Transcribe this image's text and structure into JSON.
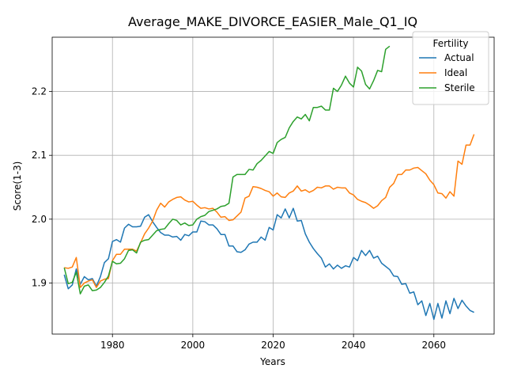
{
  "chart_data": {
    "type": "line",
    "title": "Average_MAKE_DIVORCE_EASIER_Male_Q1_IQ",
    "xlabel": "Years",
    "ylabel": "Score(1-3)",
    "xlim": [
      1965,
      2075
    ],
    "ylim": [
      1.82,
      2.285
    ],
    "xticks": [
      1980,
      2000,
      2020,
      2040,
      2060
    ],
    "yticks": [
      1.9,
      2.0,
      2.1,
      2.2
    ],
    "grid": true,
    "legend": {
      "title": "Fertility",
      "placement": "top-right"
    },
    "series": [
      {
        "name": "Actual",
        "color": "#1f77b4",
        "x": [
          1968,
          1969,
          1970,
          1971,
          1972,
          1973,
          1974,
          1975,
          1976,
          1977,
          1978,
          1979,
          1980,
          1981,
          1982,
          1983,
          1984,
          1985,
          1986,
          1987,
          1988,
          1989,
          1990,
          1991,
          1992,
          1993,
          1994,
          1995,
          1996,
          1997,
          1998,
          1999,
          2000,
          2001,
          2002,
          2003,
          2004,
          2005,
          2006,
          2007,
          2008,
          2009,
          2010,
          2011,
          2012,
          2013,
          2014,
          2015,
          2016,
          2017,
          2018,
          2019,
          2020,
          2021,
          2022,
          2023,
          2024,
          2025,
          2026,
          2027,
          2028,
          2029,
          2030,
          2031,
          2032,
          2033,
          2034,
          2035,
          2036,
          2037,
          2038,
          2039,
          2040,
          2041,
          2042,
          2043,
          2044,
          2045,
          2046,
          2047,
          2048,
          2049,
          2050,
          2051,
          2052,
          2053,
          2054,
          2055,
          2056,
          2057,
          2058,
          2059,
          2060,
          2061,
          2062,
          2063,
          2064,
          2065,
          2066,
          2067,
          2068,
          2069,
          2070
        ],
        "values": [
          1.913,
          1.891,
          1.897,
          1.922,
          1.898,
          1.91,
          1.905,
          1.907,
          1.895,
          1.91,
          1.932,
          1.938,
          1.965,
          1.968,
          1.964,
          1.986,
          1.992,
          1.988,
          1.988,
          1.989,
          2.003,
          2.007,
          1.996,
          1.987,
          1.979,
          1.975,
          1.975,
          1.972,
          1.973,
          1.967,
          1.976,
          1.974,
          1.98,
          1.98,
          1.997,
          1.996,
          1.991,
          1.991,
          1.985,
          1.976,
          1.976,
          1.958,
          1.958,
          1.949,
          1.948,
          1.952,
          1.961,
          1.964,
          1.964,
          1.972,
          1.967,
          1.987,
          1.983,
          2.007,
          2.002,
          2.016,
          2.002,
          2.017,
          1.997,
          1.998,
          1.977,
          1.964,
          1.954,
          1.946,
          1.939,
          1.925,
          1.93,
          1.922,
          1.928,
          1.923,
          1.927,
          1.925,
          1.94,
          1.935,
          1.951,
          1.943,
          1.951,
          1.939,
          1.942,
          1.931,
          1.926,
          1.921,
          1.911,
          1.91,
          1.898,
          1.899,
          1.884,
          1.886,
          1.866,
          1.872,
          1.849,
          1.868,
          1.843,
          1.868,
          1.845,
          1.872,
          1.852,
          1.876,
          1.86,
          1.873,
          1.864,
          1.857,
          1.854
        ]
      },
      {
        "name": "Ideal",
        "color": "#ff7f0e",
        "x": [
          1968,
          1969,
          1970,
          1971,
          1972,
          1973,
          1974,
          1975,
          1976,
          1977,
          1978,
          1979,
          1980,
          1981,
          1982,
          1983,
          1984,
          1985,
          1986,
          1987,
          1988,
          1989,
          1990,
          1991,
          1992,
          1993,
          1994,
          1995,
          1996,
          1997,
          1998,
          1999,
          2000,
          2001,
          2002,
          2003,
          2004,
          2005,
          2006,
          2007,
          2008,
          2009,
          2010,
          2011,
          2012,
          2013,
          2014,
          2015,
          2016,
          2017,
          2018,
          2019,
          2020,
          2021,
          2022,
          2023,
          2024,
          2025,
          2026,
          2027,
          2028,
          2029,
          2030,
          2031,
          2032,
          2033,
          2034,
          2035,
          2036,
          2037,
          2038,
          2039,
          2040,
          2041,
          2042,
          2043,
          2044,
          2045,
          2046,
          2047,
          2048,
          2049,
          2050,
          2051,
          2052,
          2053,
          2054,
          2055,
          2056,
          2057,
          2058,
          2059,
          2060,
          2061,
          2062,
          2063,
          2064,
          2065,
          2066,
          2067,
          2068,
          2069,
          2070
        ],
        "values": [
          1.924,
          1.923,
          1.925,
          1.94,
          1.893,
          1.9,
          1.903,
          1.905,
          1.893,
          1.903,
          1.906,
          1.907,
          1.935,
          1.945,
          1.945,
          1.953,
          1.953,
          1.953,
          1.95,
          1.963,
          1.977,
          1.986,
          1.997,
          2.014,
          2.025,
          2.019,
          2.027,
          2.031,
          2.034,
          2.035,
          2.03,
          2.027,
          2.028,
          2.022,
          2.017,
          2.018,
          2.016,
          2.017,
          2.011,
          2.003,
          2.004,
          1.998,
          1.999,
          2.005,
          2.011,
          2.033,
          2.036,
          2.051,
          2.05,
          2.048,
          2.045,
          2.043,
          2.036,
          2.041,
          2.035,
          2.034,
          2.041,
          2.044,
          2.052,
          2.044,
          2.046,
          2.042,
          2.045,
          2.05,
          2.049,
          2.052,
          2.052,
          2.047,
          2.05,
          2.049,
          2.049,
          2.041,
          2.038,
          2.031,
          2.028,
          2.026,
          2.022,
          2.017,
          2.021,
          2.029,
          2.034,
          2.05,
          2.056,
          2.07,
          2.07,
          2.077,
          2.077,
          2.08,
          2.081,
          2.076,
          2.071,
          2.061,
          2.054,
          2.041,
          2.04,
          2.033,
          2.043,
          2.036,
          2.091,
          2.086,
          2.116,
          2.116,
          2.133
        ]
      },
      {
        "name": "Sterile",
        "color": "#2ca02c",
        "x": [
          1968,
          1969,
          1970,
          1971,
          1972,
          1973,
          1974,
          1975,
          1976,
          1977,
          1978,
          1979,
          1980,
          1981,
          1982,
          1983,
          1984,
          1985,
          1986,
          1987,
          1988,
          1989,
          1990,
          1991,
          1992,
          1993,
          1994,
          1995,
          1996,
          1997,
          1998,
          1999,
          2000,
          2001,
          2002,
          2003,
          2004,
          2005,
          2006,
          2007,
          2008,
          2009,
          2010,
          2011,
          2012,
          2013,
          2014,
          2015,
          2016,
          2017,
          2018,
          2019,
          2020,
          2021,
          2022,
          2023,
          2024,
          2025,
          2026,
          2027,
          2028,
          2029,
          2030,
          2031,
          2032,
          2033,
          2034,
          2035,
          2036,
          2037,
          2038,
          2039,
          2040,
          2041,
          2042,
          2043,
          2044,
          2045,
          2046,
          2047,
          2048,
          2049
        ],
        "values": [
          1.924,
          1.899,
          1.901,
          1.917,
          1.883,
          1.895,
          1.897,
          1.888,
          1.889,
          1.893,
          1.901,
          1.911,
          1.934,
          1.93,
          1.931,
          1.938,
          1.951,
          1.952,
          1.947,
          1.964,
          1.967,
          1.968,
          1.975,
          1.982,
          1.984,
          1.985,
          1.993,
          2.0,
          1.998,
          1.991,
          1.994,
          1.99,
          1.991,
          2.0,
          2.004,
          2.006,
          2.012,
          2.014,
          2.016,
          2.02,
          2.021,
          2.025,
          2.066,
          2.07,
          2.07,
          2.07,
          2.078,
          2.077,
          2.087,
          2.092,
          2.099,
          2.106,
          2.103,
          2.12,
          2.125,
          2.128,
          2.143,
          2.153,
          2.16,
          2.157,
          2.164,
          2.154,
          2.175,
          2.175,
          2.177,
          2.171,
          2.171,
          2.205,
          2.2,
          2.21,
          2.224,
          2.213,
          2.207,
          2.238,
          2.232,
          2.211,
          2.204,
          2.217,
          2.233,
          2.231,
          2.266,
          2.271
        ]
      }
    ]
  }
}
